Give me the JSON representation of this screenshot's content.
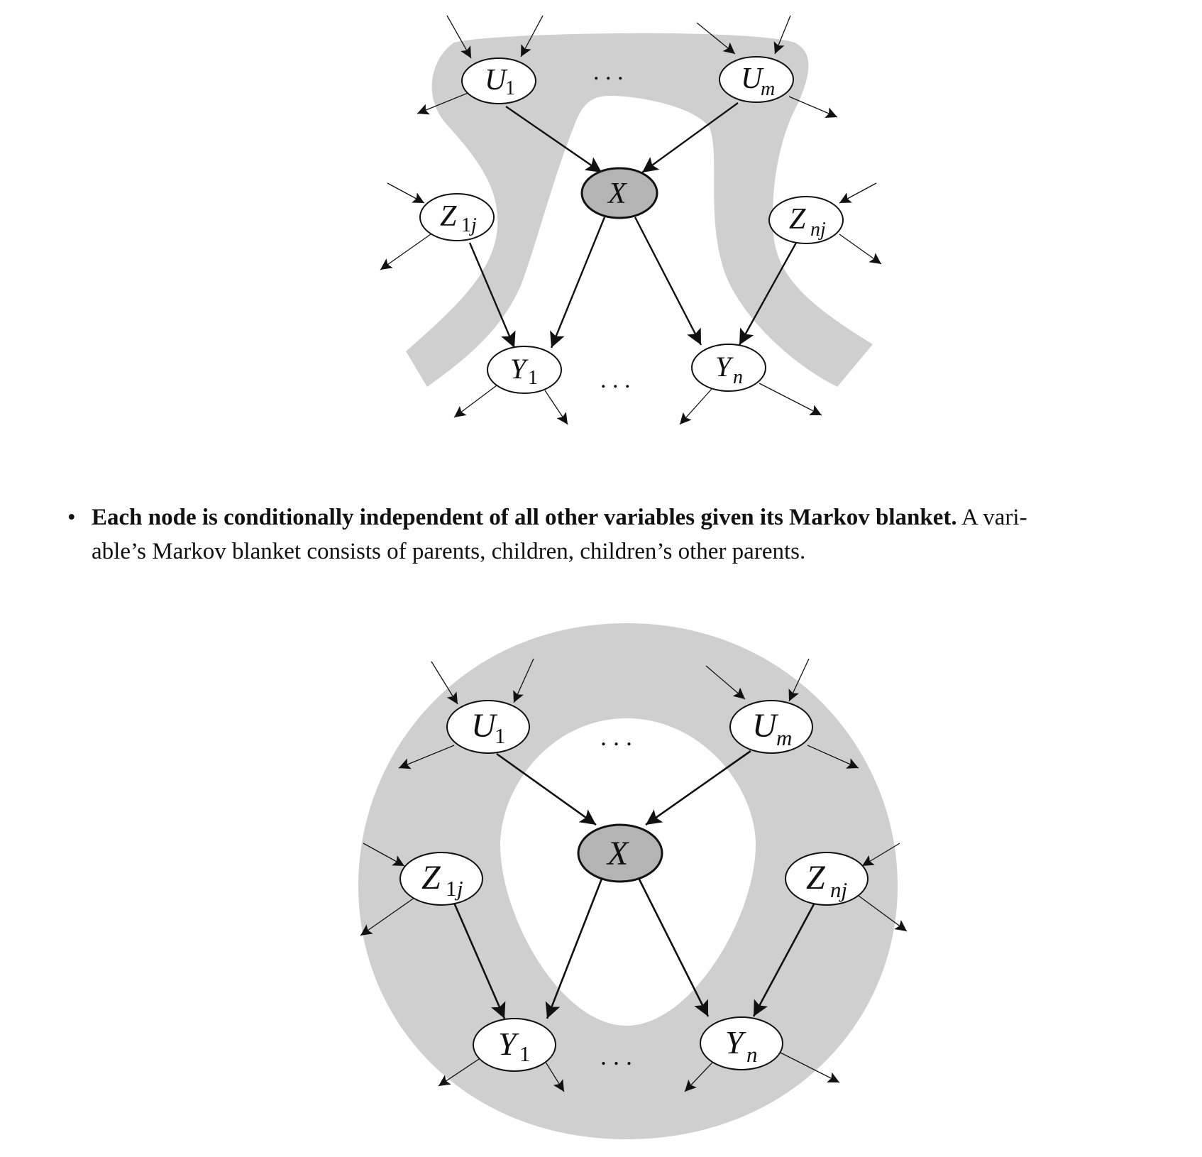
{
  "diagram_top": {
    "nodes": {
      "u1": {
        "main": "U",
        "sub": "1"
      },
      "um": {
        "main": "U",
        "sub": "m"
      },
      "x": {
        "main": "X",
        "sub": ""
      },
      "z1j": {
        "main": "Z",
        "sub_num": "1",
        "sub_var": "j"
      },
      "znj": {
        "main": "Z",
        "sub": "nj"
      },
      "y1": {
        "main": "Y",
        "sub": "1"
      },
      "yn": {
        "main": "Y",
        "sub": "n"
      }
    },
    "ellipsis_top": ". . .",
    "ellipsis_bottom": ". . ."
  },
  "bullet": {
    "marker": "•",
    "bold_text": "Each node is conditionally independent of all other variables given its Markov blanket.",
    "line1_rest": " A vari-",
    "line2": "able’s Markov blanket consists of parents, children, children’s other parents."
  },
  "diagram_bottom": {
    "nodes": {
      "u1": {
        "main": "U",
        "sub": "1"
      },
      "um": {
        "main": "U",
        "sub": "m"
      },
      "x": {
        "main": "X",
        "sub": ""
      },
      "z1j": {
        "main": "Z",
        "sub_num": "1",
        "sub_var": "j"
      },
      "znj": {
        "main": "Z",
        "sub": "nj"
      },
      "y1": {
        "main": "Y",
        "sub": "1"
      },
      "yn": {
        "main": "Y",
        "sub": "n"
      }
    },
    "ellipsis_top": ". . .",
    "ellipsis_bottom": ". . ."
  },
  "colors": {
    "shade": "#cfcfcf",
    "node_fill": "#ffffff",
    "x_fill": "#b4b4b4",
    "stroke": "#111111"
  }
}
